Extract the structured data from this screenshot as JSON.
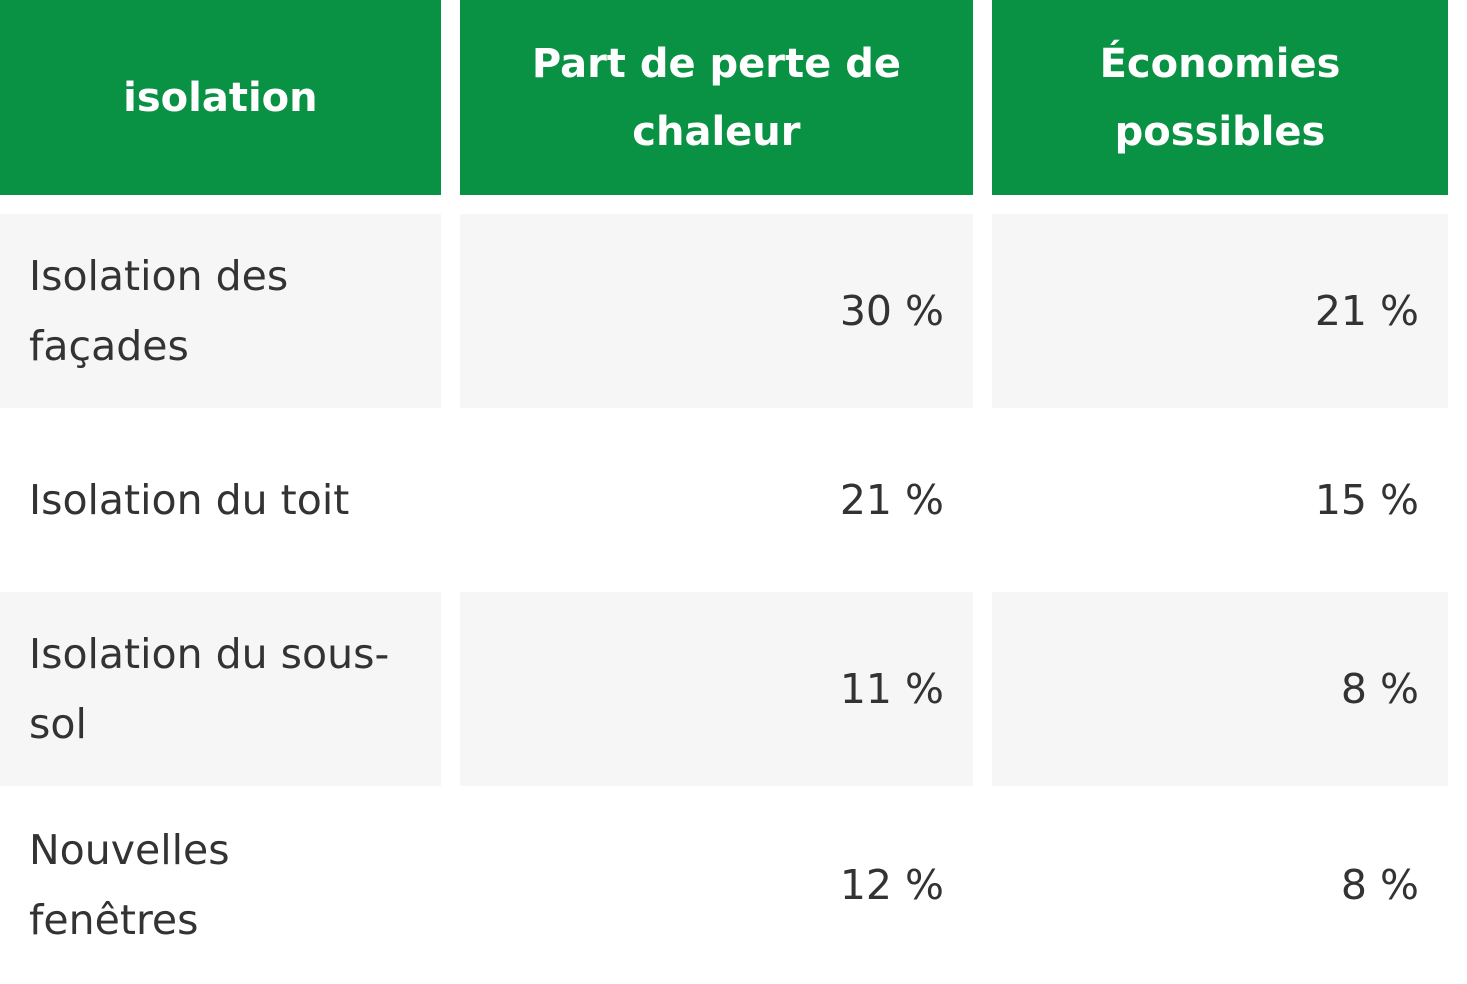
{
  "table": {
    "headers": [
      "isolation",
      "Part de perte de chaleur",
      "Économies possibles"
    ],
    "rows": [
      {
        "label": "Isolation des façades",
        "heat_loss": "30 %",
        "savings": "21 %"
      },
      {
        "label": "Isolation du toit",
        "heat_loss": "21 %",
        "savings": "15 %"
      },
      {
        "label": "Isolation du sous-sol",
        "heat_loss": "11 %",
        "savings": "8 %"
      },
      {
        "label": "Nouvelles fenêtres",
        "heat_loss": "12 %",
        "savings": "8 %"
      }
    ]
  },
  "colors": {
    "header_bg": "#0a9244",
    "header_text": "#ffffff",
    "row_shaded_bg": "#f6f6f6",
    "row_plain_bg": "#ffffff",
    "body_text": "#333333"
  }
}
